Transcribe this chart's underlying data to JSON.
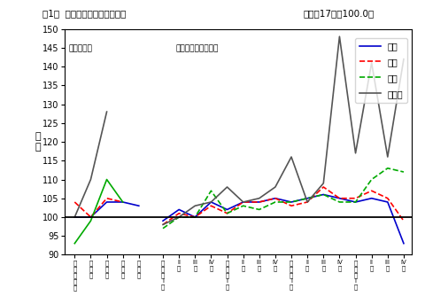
{
  "title": "第1図  千葉県鉱工業指数の推移",
  "title_right": "（平成17年＝100.0）",
  "ylabel": "指\n数",
  "note_left": "（原指数）",
  "note_center": "（季節調整済指数）",
  "ylim": [
    90,
    150
  ],
  "yticks": [
    90,
    95,
    100,
    105,
    110,
    115,
    120,
    125,
    130,
    135,
    140,
    145,
    150
  ],
  "annual_x": [
    0,
    1,
    2,
    3,
    4
  ],
  "qstart": 5.5,
  "prod_annual_y": [
    100,
    100,
    104,
    104,
    103
  ],
  "ship_annual_y": [
    104,
    100,
    105,
    104,
    null
  ],
  "inv_annual_y": [
    93,
    99,
    110,
    104,
    null
  ],
  "invr_annual_y": [
    100,
    110,
    128,
    null,
    null
  ],
  "prod_sa_y": [
    99,
    102,
    100,
    104,
    102,
    104,
    104,
    105,
    104,
    105,
    106,
    105,
    104,
    105,
    104,
    93
  ],
  "ship_sa_y": [
    98,
    101,
    100,
    103,
    101,
    104,
    104,
    105,
    103,
    104,
    108,
    105,
    105,
    107,
    105,
    99
  ],
  "inv_sa_y": [
    97,
    100,
    100,
    107,
    101,
    103,
    102,
    104,
    104,
    105,
    106,
    104,
    104,
    110,
    113,
    112
  ],
  "invr_sa_y": [
    98,
    100,
    103,
    104,
    108,
    104,
    105,
    108,
    116,
    104,
    109,
    148,
    117,
    141,
    116,
    142
  ],
  "annual_tick_labels": [
    "平\n成\n十\n六\n年",
    "十\n七\n年",
    "十\n八\n年",
    "十\n九\n年",
    "二\n十\n年"
  ],
  "quarterly_tick_labels": [
    "十\n七\n年\nI\n期",
    "II\n期",
    "III\n期",
    "IV\n期",
    "十\n八\n年\nI\n期",
    "II\n期",
    "III\n期",
    "IV\n期",
    "十\n九\n年\nI\n期",
    "II\n期",
    "III\n期",
    "IV\n期",
    "二\n十\n年\nI\n期",
    "II\n期",
    "III\n期",
    "IV\n期"
  ],
  "colors": {
    "production": "#0000cc",
    "shipment": "#ff0000",
    "inventory": "#00aa00",
    "inventory_rate": "#555555"
  },
  "background_color": "#ffffff"
}
